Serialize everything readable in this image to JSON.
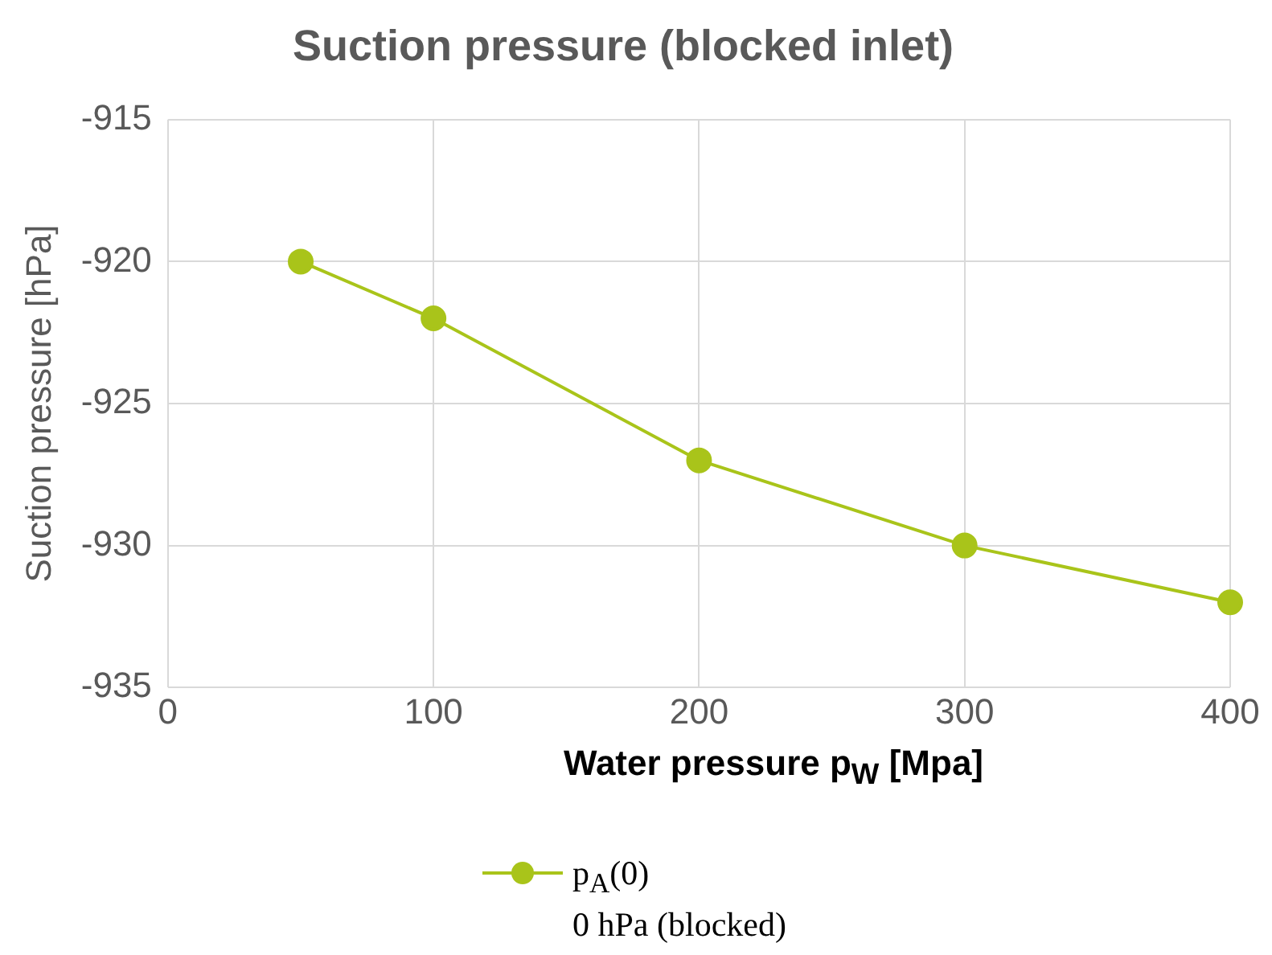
{
  "chart_data": {
    "type": "line",
    "title": "Suction pressure (blocked inlet)",
    "xlabel": "Water pressure p$_{W}$ [Mpa]",
    "ylabel": "Suction pressure [hPa]",
    "x": [
      50,
      100,
      200,
      300,
      400
    ],
    "series": [
      {
        "name": "p$_{A}$(0)\n0 hPa (blocked)",
        "color": "#a9c41a",
        "values": [
          -920,
          -922,
          -927,
          -930,
          -932
        ]
      }
    ],
    "xlim": [
      0,
      400
    ],
    "xticks": [
      0,
      100,
      200,
      300,
      400
    ],
    "ylim": [
      -935,
      -915
    ],
    "yticks": [
      -935,
      -930,
      -925,
      -920,
      -915
    ],
    "grid": true,
    "legend": "bottom",
    "marker": "circle",
    "line_style": "solid"
  }
}
